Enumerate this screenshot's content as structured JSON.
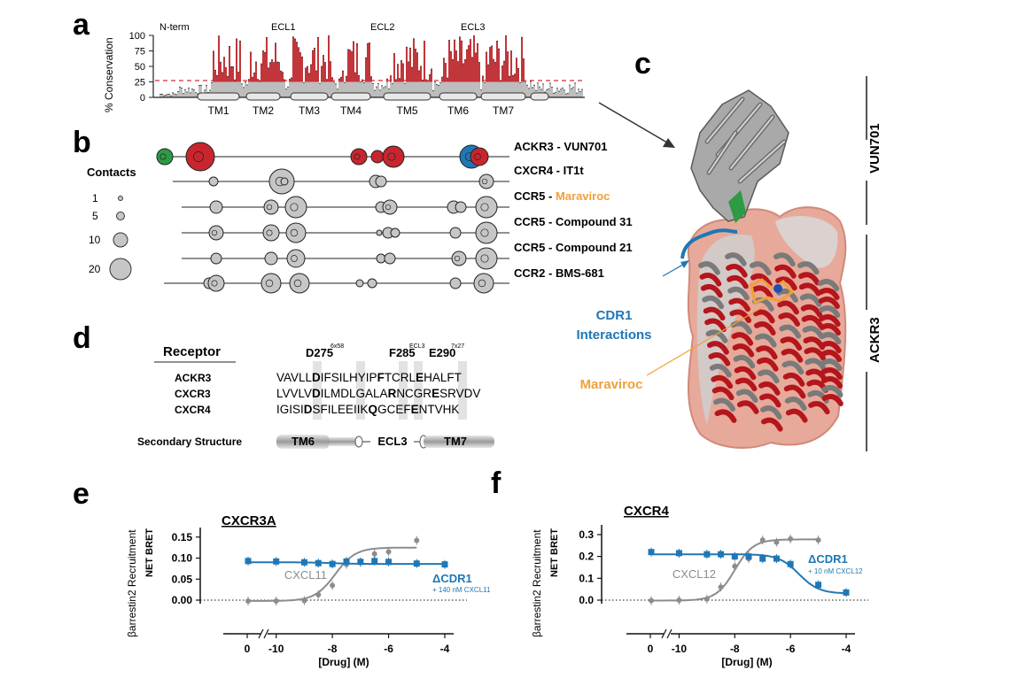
{
  "panels": {
    "a": "a",
    "b": "b",
    "c": "c",
    "d": "d",
    "e": "e",
    "f": "f"
  },
  "panel_a": {
    "ylabel": "% Conservation",
    "yticks": [
      "0",
      "25",
      "50",
      "75",
      "100"
    ],
    "regions": [
      "N-term",
      "ECL1",
      "ECL2",
      "ECL3"
    ],
    "tm": [
      "TM1",
      "TM2",
      "TM3",
      "TM4",
      "TM5",
      "TM6",
      "TM7"
    ],
    "threshold": 25,
    "colors": {
      "conserved": "#c0363a",
      "background": "#bdbdbd",
      "threshold": "#d62a3a"
    }
  },
  "panel_b": {
    "rows": [
      "ACKR3 - VUN701",
      "CXCR4 - IT1t",
      "CCR5 - ",
      "CCR5 - Compound 31",
      "CCR5 - Compound 21",
      "CCR2 - BMS-681"
    ],
    "maraviroc": "Maraviroc",
    "legend_title": "Contacts",
    "legend": [
      "1",
      "5",
      "10",
      "20"
    ],
    "colors": {
      "red": "#c8262e",
      "blue": "#1f77b4",
      "green": "#2e9a43",
      "grey": "#c6c6c6",
      "orange": "#f0a03c"
    }
  },
  "panel_c": {
    "vun701": "VUN701",
    "ackr3": "ACKR3",
    "cdr1": [
      "CDR1",
      "Interactions"
    ],
    "maraviroc": "Maraviroc"
  },
  "panel_d": {
    "header": "Receptor",
    "positions": [
      {
        "name": "D275",
        "sup": "6x58"
      },
      {
        "name": "F285",
        "sup": "ECL3"
      },
      {
        "name": "E290",
        "sup": "7x27"
      }
    ],
    "receptors": [
      {
        "name": "ACKR3",
        "seq": [
          "VAVLL",
          "D",
          "IFSILHYIP",
          "F",
          "TCRL",
          "E",
          "HALFT"
        ]
      },
      {
        "name": "CXCR3",
        "seq": [
          "LVVLV",
          "D",
          "ILMDLGALA",
          "R",
          "NCGR",
          "E",
          "SRVDV"
        ]
      },
      {
        "name": "CXCR4",
        "seq": [
          "IGISI",
          "D",
          "SFILEEIIK",
          "Q",
          "GCEF",
          "E",
          "NTVHK"
        ]
      }
    ],
    "secondary_label": "Secondary Structure",
    "secondary": [
      "TM6",
      "ECL3",
      "TM7"
    ]
  },
  "panel_e": {
    "title": "CXCR3A",
    "ylabel": "βarrestin2 Recruitment",
    "ylabel2": "NET BRET",
    "xlabel": "[Drug] (M)",
    "yticks": [
      "0.00",
      "0.05",
      "0.10",
      "0.15"
    ],
    "xticks": [
      "0",
      "-10",
      "-8",
      "-6",
      "-4"
    ],
    "ligand_label": "CXCL11",
    "mutant_label": "ΔCDR1",
    "mutant_sublabel": "+ 140 nM CXCL11"
  },
  "panel_f": {
    "title": "CXCR4",
    "ylabel": "βarrestin2 Recruitment",
    "ylabel2": "NET BRET",
    "xlabel": "[Drug] (M)",
    "yticks": [
      "0.0",
      "0.1",
      "0.2",
      "0.3"
    ],
    "xticks": [
      "0",
      "-10",
      "-8",
      "-6",
      "-4"
    ],
    "ligand_label": "CXCL12",
    "mutant_label": "ΔCDR1",
    "mutant_sublabel": "+ 10 nM CXCL12"
  },
  "chart_data": [
    {
      "type": "line",
      "panel": "e",
      "title": "CXCR3A",
      "xlabel": "[Drug] (M)",
      "ylabel": "βarrestin2 Recruitment NET BRET",
      "xlim": [
        -11,
        -4
      ],
      "ylim": [
        0,
        0.16
      ],
      "series": [
        {
          "name": "CXCL11",
          "color": "#8c8c8c",
          "x": [
            -11,
            -10,
            -9,
            -8.5,
            -8,
            -7.5,
            -7,
            -6.5,
            -6,
            -5
          ],
          "y": [
            -0.002,
            -0.002,
            -0.001,
            0.013,
            0.035,
            0.085,
            0.09,
            0.11,
            0.115,
            0.142
          ]
        },
        {
          "name": "ΔCDR1",
          "color": "#1f77b4",
          "x": [
            -11,
            -10,
            -9,
            -8.5,
            -8,
            -7.5,
            -7,
            -6.5,
            -6,
            -5,
            -4
          ],
          "y": [
            0.093,
            0.092,
            0.09,
            0.088,
            0.086,
            0.092,
            0.091,
            0.093,
            0.091,
            0.087,
            0.085
          ]
        }
      ]
    },
    {
      "type": "line",
      "panel": "f",
      "title": "CXCR4",
      "xlabel": "[Drug] (M)",
      "ylabel": "βarrestin2 Recruitment NET BRET",
      "xlim": [
        -11,
        -4
      ],
      "ylim": [
        0,
        0.32
      ],
      "series": [
        {
          "name": "CXCL12",
          "color": "#8c8c8c",
          "x": [
            -11,
            -10,
            -9,
            -8.5,
            -8,
            -7.5,
            -7,
            -6.5,
            -6,
            -5
          ],
          "y": [
            -0.002,
            0.0,
            0.005,
            0.06,
            0.155,
            0.19,
            0.275,
            0.265,
            0.28,
            0.275
          ]
        },
        {
          "name": "ΔCDR1",
          "color": "#1f77b4",
          "x": [
            -11,
            -10,
            -9,
            -8.5,
            -8,
            -7.5,
            -7,
            -6.5,
            -6,
            -5,
            -4
          ],
          "y": [
            0.22,
            0.215,
            0.21,
            0.21,
            0.2,
            0.2,
            0.19,
            0.19,
            0.165,
            0.07,
            0.035
          ]
        }
      ]
    }
  ]
}
